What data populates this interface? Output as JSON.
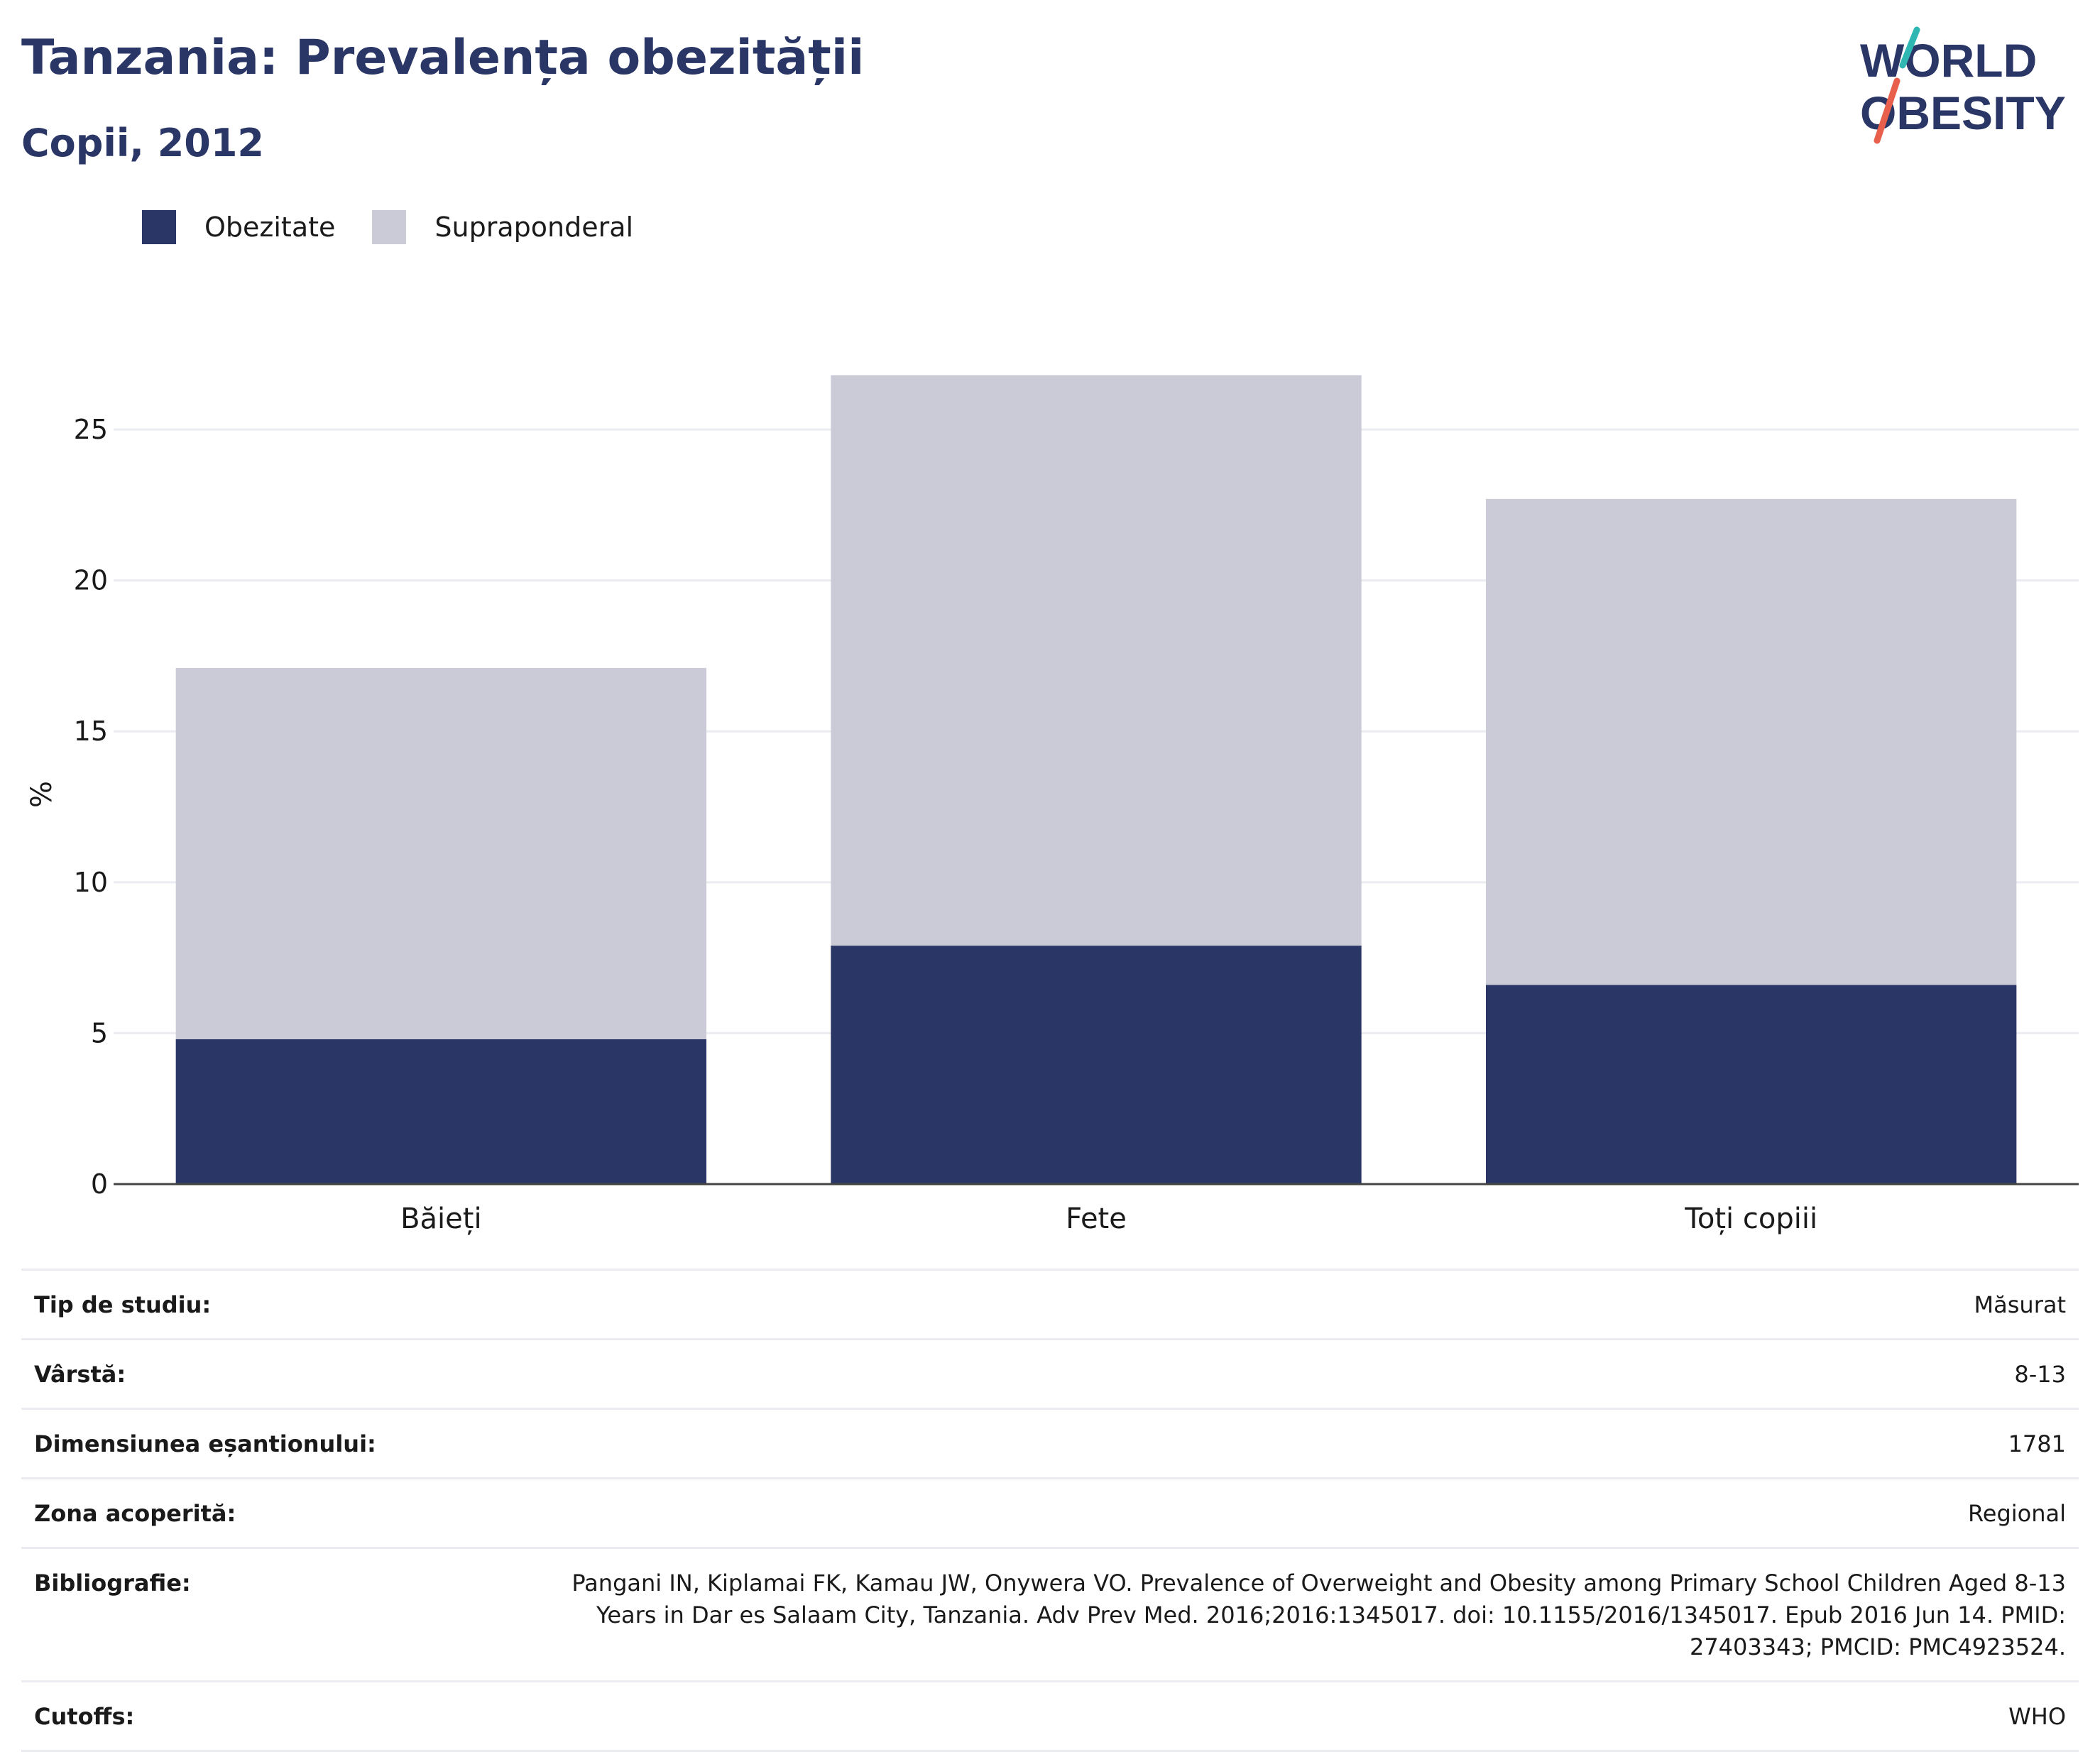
{
  "header": {
    "title": "Tanzania: Prevalența obezității",
    "subtitle": "Copii, 2012"
  },
  "logo": {
    "line1": "WORLD",
    "line2": "OBESITY",
    "colors": {
      "text": "#2a3665",
      "slash_top": "#2fb7b4",
      "slash_bottom": "#e8604c"
    }
  },
  "colors": {
    "obesity": "#2a3665",
    "overweight": "#cacbd7",
    "grid": "#ebecf2",
    "axis": "#444444"
  },
  "chart_data": {
    "type": "bar",
    "stacked": true,
    "categories": [
      "Băieți",
      "Fete",
      "Toți copiii"
    ],
    "series": [
      {
        "name": "Obezitate",
        "values": [
          4.8,
          7.9,
          6.6
        ],
        "color": "#2a3665"
      },
      {
        "name": "Supraponderal",
        "values": [
          12.3,
          18.9,
          16.1
        ],
        "color": "#cacbd7"
      }
    ],
    "ylabel": "%",
    "ylim": [
      0,
      27
    ],
    "yticks": [
      0,
      5,
      10,
      15,
      20,
      25
    ],
    "grid": true,
    "legend": "top-left"
  },
  "info": [
    {
      "label": "Tip de studiu:",
      "value": "Măsurat"
    },
    {
      "label": "Vârstă:",
      "value": "8-13"
    },
    {
      "label": "Dimensiunea eșantionului:",
      "value": "1781"
    },
    {
      "label": "Zona acoperită:",
      "value": "Regional"
    },
    {
      "label": "Bibliografie:",
      "value": "Pangani IN, Kiplamai FK, Kamau JW, Onywera VO. Prevalence of Overweight and Obesity among Primary School Children Aged 8-13 Years in Dar es Salaam City, Tanzania. Adv Prev Med. 2016;2016:1345017. doi: 10.1155/2016/1345017. Epub 2016 Jun 14. PMID: 27403343; PMCID: PMC4923524."
    },
    {
      "label": "Cutoffs:",
      "value": "WHO"
    }
  ]
}
